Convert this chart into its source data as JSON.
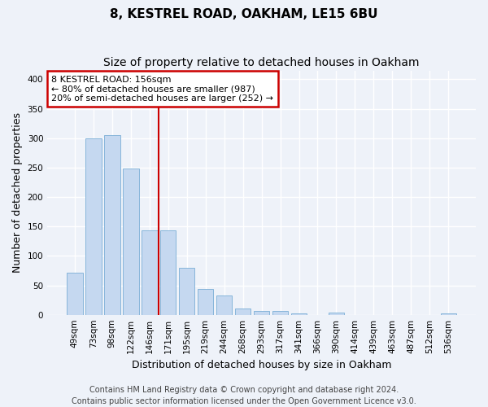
{
  "title1": "8, KESTREL ROAD, OAKHAM, LE15 6BU",
  "title2": "Size of property relative to detached houses in Oakham",
  "xlabel": "Distribution of detached houses by size in Oakham",
  "ylabel": "Number of detached properties",
  "categories": [
    "49sqm",
    "73sqm",
    "98sqm",
    "122sqm",
    "146sqm",
    "171sqm",
    "195sqm",
    "219sqm",
    "244sqm",
    "268sqm",
    "293sqm",
    "317sqm",
    "341sqm",
    "366sqm",
    "390sqm",
    "414sqm",
    "439sqm",
    "463sqm",
    "487sqm",
    "512sqm",
    "536sqm"
  ],
  "values": [
    72,
    300,
    305,
    248,
    144,
    144,
    80,
    44,
    33,
    10,
    6,
    7,
    2,
    0,
    4,
    0,
    0,
    0,
    0,
    0,
    2
  ],
  "bar_color": "#c5d8f0",
  "bar_edge_color": "#7aaed6",
  "vline_index": 4,
  "vline_color": "#cc0000",
  "annotation_line1": "8 KESTREL ROAD: 156sqm",
  "annotation_line2": "← 80% of detached houses are smaller (987)",
  "annotation_line3": "20% of semi-detached houses are larger (252) →",
  "annotation_box_color": "#ffffff",
  "annotation_box_edge_color": "#cc0000",
  "ylim": [
    0,
    415
  ],
  "yticks": [
    0,
    50,
    100,
    150,
    200,
    250,
    300,
    350,
    400
  ],
  "footer1": "Contains HM Land Registry data © Crown copyright and database right 2024.",
  "footer2": "Contains public sector information licensed under the Open Government Licence v3.0.",
  "bg_color": "#eef2f9",
  "plot_bg_color": "#eef2f9",
  "grid_color": "#ffffff",
  "title1_fontsize": 11,
  "title2_fontsize": 10,
  "tick_fontsize": 7.5,
  "ylabel_fontsize": 9,
  "xlabel_fontsize": 9,
  "annotation_fontsize": 8,
  "footer_fontsize": 7
}
